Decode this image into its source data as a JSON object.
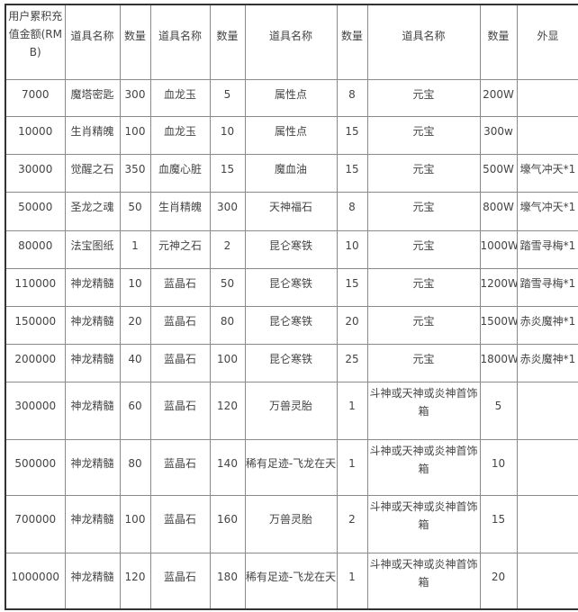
{
  "headers": [
    "用户累积充值金额(RMB)",
    "道具名称",
    "数量",
    "道具名称",
    "数量",
    "道具名称",
    "数量",
    "道具名称",
    "数量",
    "外显"
  ],
  "rows": [
    [
      "7000",
      "魔塔密匙",
      "300",
      "血龙玉",
      "5",
      "属性点",
      "8",
      "元宝",
      "200W",
      ""
    ],
    [
      "10000",
      "生肖精魄",
      "100",
      "血龙玉",
      "10",
      "属性点",
      "15",
      "元宝",
      "300w",
      ""
    ],
    [
      "30000",
      "觉醒之石",
      "350",
      "血魔心脏",
      "15",
      "魔血油",
      "15",
      "元宝",
      "500W",
      "壕气冲天*1"
    ],
    [
      "50000",
      "圣龙之魂",
      "50",
      "生肖精魄",
      "300",
      "天神福石",
      "8",
      "元宝",
      "800W",
      "壕气冲天*1"
    ],
    [
      "80000",
      "法宝图纸",
      "1",
      "元神之石",
      "2",
      "昆仑寒铁",
      "10",
      "元宝",
      "1000W",
      "踏雪寻梅*1"
    ],
    [
      "110000",
      "神龙精髓",
      "10",
      "蓝晶石",
      "50",
      "昆仑寒铁",
      "15",
      "元宝",
      "1200W",
      "踏雪寻梅*1"
    ],
    [
      "150000",
      "神龙精髓",
      "20",
      "蓝晶石",
      "80",
      "昆仑寒铁",
      "20",
      "元宝",
      "1500W",
      "赤炎魔神*1"
    ],
    [
      "200000",
      "神龙精髓",
      "40",
      "蓝晶石",
      "100",
      "昆仑寒铁",
      "25",
      "元宝",
      "1800W",
      "赤炎魔神*1"
    ],
    [
      "300000",
      "神龙精髓",
      "60",
      "蓝晶石",
      "120",
      "万兽灵胎",
      "1",
      "斗神或天神或炎神首饰箱",
      "5",
      ""
    ],
    [
      "500000",
      "神龙精髓",
      "80",
      "蓝晶石",
      "140",
      "稀有足迹-飞龙在天",
      "1",
      "斗神或天神或炎神首饰箱",
      "10",
      ""
    ],
    [
      "700000",
      "神龙精髓",
      "100",
      "蓝晶石",
      "160",
      "万兽灵胎",
      "2",
      "斗神或天神或炎神首饰箱",
      "15",
      ""
    ],
    [
      "1000000",
      "神龙精髓",
      "120",
      "蓝晶石",
      "180",
      "稀有足迹-飞龙在天",
      "1",
      "斗神或天神或炎神首饰箱",
      "20",
      ""
    ]
  ]
}
